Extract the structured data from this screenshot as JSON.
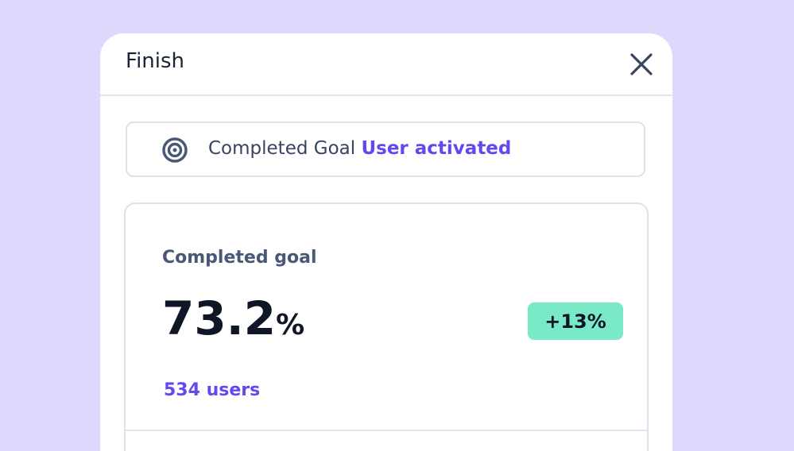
{
  "header": {
    "title": "Finish"
  },
  "goal": {
    "label": "Completed Goal",
    "name": "User activated"
  },
  "stat": {
    "label": "Completed goal",
    "value": "73.2",
    "unit": "%",
    "change": "+13%",
    "users": "534 users"
  }
}
